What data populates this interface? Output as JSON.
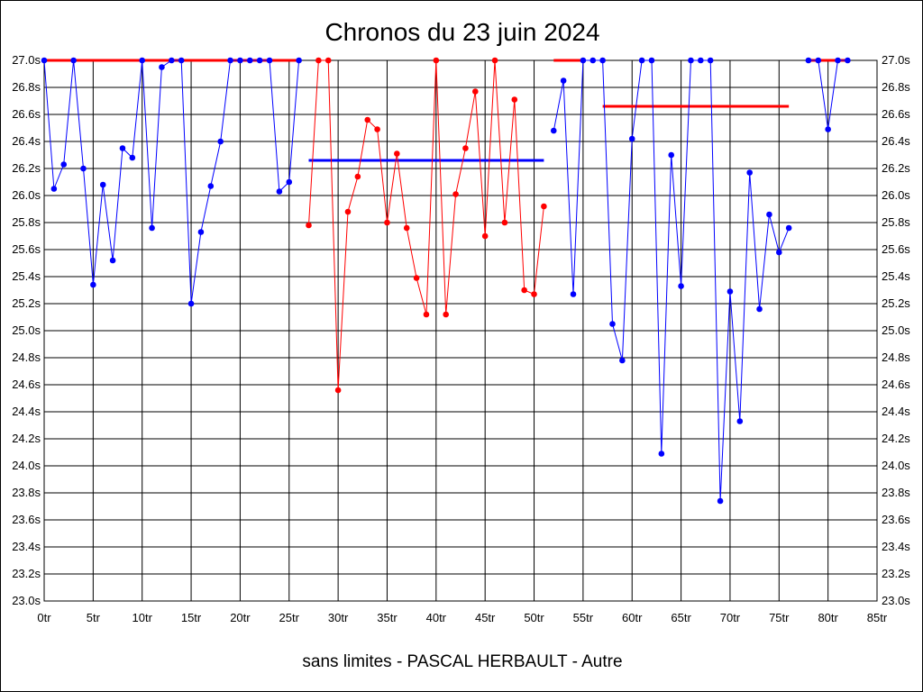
{
  "chart_data": {
    "type": "line",
    "title": "Chronos du 23 juin 2024",
    "subtitle": "sans limites - PASCAL HERBAULT - Autre",
    "xlim": [
      0,
      85
    ],
    "ylim": [
      23.0,
      27.0
    ],
    "grid": true,
    "x_ticks": [
      "0tr",
      "5tr",
      "10tr",
      "15tr",
      "20tr",
      "25tr",
      "30tr",
      "35tr",
      "40tr",
      "45tr",
      "50tr",
      "55tr",
      "60tr",
      "65tr",
      "70tr",
      "75tr",
      "80tr",
      "85tr"
    ],
    "y_ticks": [
      "27.0s",
      "26.8s",
      "26.6s",
      "26.4s",
      "26.2s",
      "26.0s",
      "25.8s",
      "25.6s",
      "25.4s",
      "25.2s",
      "25.0s",
      "24.8s",
      "24.6s",
      "24.4s",
      "24.2s",
      "24.0s",
      "23.8s",
      "23.6s",
      "23.4s",
      "23.2s",
      "23.0s"
    ],
    "series": [
      {
        "color": "#0000ff",
        "x": [
          0,
          1,
          2,
          3,
          4,
          5,
          6,
          7,
          8,
          9,
          10,
          11,
          12,
          13,
          14,
          15,
          16,
          17,
          18,
          19,
          20,
          21,
          22,
          23,
          24,
          25,
          26
        ],
        "y": [
          27.0,
          26.05,
          26.23,
          27.0,
          26.2,
          25.34,
          26.08,
          25.52,
          26.35,
          26.28,
          27.0,
          25.76,
          26.95,
          27.0,
          27.0,
          25.2,
          25.73,
          26.07,
          26.4,
          27.0,
          27.0,
          27.0,
          27.0,
          27.0,
          26.03,
          26.1,
          27.0
        ]
      },
      {
        "color": "#ff0000",
        "x": [
          27,
          28,
          29,
          30,
          31,
          32,
          33,
          34,
          35,
          36,
          37,
          38,
          39,
          40,
          41,
          42,
          43,
          44,
          45,
          46,
          47,
          48,
          49,
          50,
          51
        ],
        "y": [
          25.78,
          27.0,
          27.0,
          24.56,
          25.88,
          26.14,
          26.56,
          26.49,
          25.8,
          26.31,
          25.76,
          25.39,
          25.12,
          27.0,
          25.12,
          26.01,
          26.35,
          26.77,
          25.7,
          27.0,
          25.8,
          26.71,
          25.3,
          25.27,
          25.92
        ]
      },
      {
        "color": "#0000ff",
        "x": [
          52,
          53,
          54,
          55,
          56,
          57,
          58,
          59,
          60,
          61,
          62,
          63,
          64,
          65,
          66,
          67,
          68,
          69,
          70,
          71,
          72,
          73,
          74,
          75,
          76
        ],
        "y": [
          26.48,
          26.85,
          25.27,
          27.0,
          27.0,
          27.0,
          25.05,
          24.78,
          26.42,
          27.0,
          27.0,
          24.09,
          26.3,
          25.33,
          27.0,
          27.0,
          27.0,
          23.74,
          25.29,
          24.33,
          26.17,
          25.16,
          25.86,
          25.58,
          25.76
        ]
      },
      {
        "color": "#0000ff",
        "x": [
          78,
          79,
          80,
          81,
          82
        ],
        "y": [
          27.0,
          27.0,
          26.49,
          27.0,
          27.0
        ]
      }
    ],
    "reference_lines": [
      {
        "color": "#ff0000",
        "x": [
          0,
          26
        ],
        "y": 27.0
      },
      {
        "color": "#0000ff",
        "x": [
          27,
          51
        ],
        "y": 26.26
      },
      {
        "color": "#ff0000",
        "x": [
          52,
          55
        ],
        "y": 27.0
      },
      {
        "color": "#ff0000",
        "x": [
          57,
          76
        ],
        "y": 26.66
      },
      {
        "color": "#ff0000",
        "x": [
          78,
          82
        ],
        "y": 27.0
      }
    ]
  }
}
